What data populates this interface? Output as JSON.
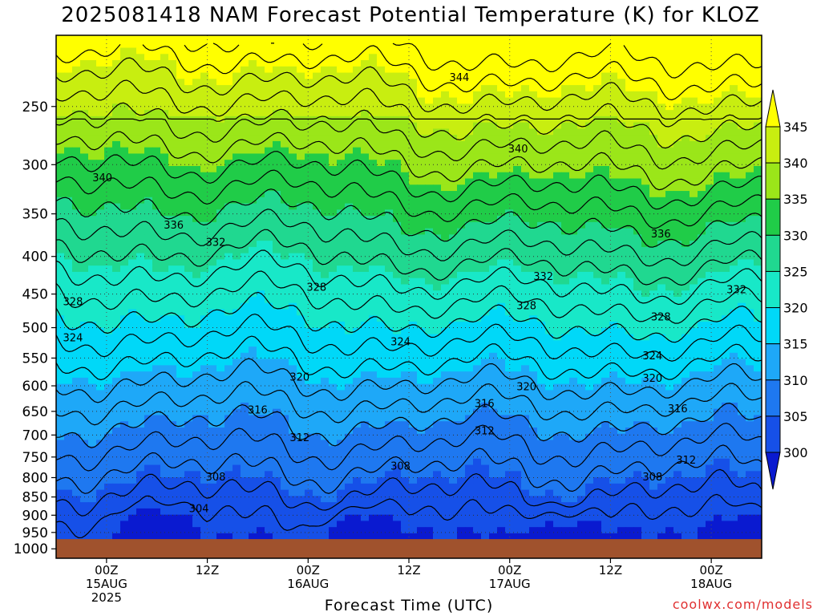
{
  "chart_data": {
    "type": "contour",
    "title": "2025081418 NAM Forecast Potential Temperature (K) for KLOZ",
    "xlabel": "Forecast Time (UTC)",
    "ylabel": "",
    "credit": "coolwx.com/models",
    "x_ticks": [
      {
        "hour": 6,
        "line1": "00Z",
        "line2": "15AUG",
        "line3": "2025"
      },
      {
        "hour": 18,
        "line1": "12Z",
        "line2": "",
        "line3": ""
      },
      {
        "hour": 30,
        "line1": "00Z",
        "line2": "16AUG",
        "line3": ""
      },
      {
        "hour": 42,
        "line1": "12Z",
        "line2": "",
        "line3": ""
      },
      {
        "hour": 54,
        "line1": "00Z",
        "line2": "17AUG",
        "line3": ""
      },
      {
        "hour": 66,
        "line1": "12Z",
        "line2": "",
        "line3": ""
      },
      {
        "hour": 78,
        "line1": "00Z",
        "line2": "18AUG",
        "line3": ""
      }
    ],
    "x_range_hours": [
      0,
      84
    ],
    "y_ticks": [
      "250",
      "300",
      "350",
      "400",
      "450",
      "500",
      "550",
      "600",
      "650",
      "700",
      "750",
      "800",
      "850",
      "900",
      "950",
      "1000"
    ],
    "y_range_hpa": [
      200,
      1030
    ],
    "y_scale": "log",
    "ground_pressure_hpa": 970,
    "colorbar_levels": [
      "300",
      "305",
      "310",
      "315",
      "320",
      "325",
      "330",
      "335",
      "340",
      "345"
    ],
    "colorbar_colors": [
      "#0a1ad0",
      "#1650e8",
      "#1e78f0",
      "#1ea8f8",
      "#00d8f8",
      "#18e8c8",
      "#20d890",
      "#20cc48",
      "#9be619",
      "#c8ee10",
      "#ffff00"
    ],
    "ground_color": "#a0522d",
    "contour_interval_k": 2,
    "contour_labels": [
      {
        "value": "344",
        "hour": 48,
        "p": 228
      },
      {
        "value": "340",
        "hour": 55,
        "p": 285
      },
      {
        "value": "340",
        "hour": 5.5,
        "p": 312
      },
      {
        "value": "336",
        "hour": 14,
        "p": 362
      },
      {
        "value": "336",
        "hour": 72,
        "p": 372
      },
      {
        "value": "332",
        "hour": 19,
        "p": 382
      },
      {
        "value": "332",
        "hour": 58,
        "p": 425
      },
      {
        "value": "332",
        "hour": 81,
        "p": 443
      },
      {
        "value": "328",
        "hour": 31,
        "p": 440
      },
      {
        "value": "328",
        "hour": 2,
        "p": 460
      },
      {
        "value": "328",
        "hour": 56,
        "p": 466
      },
      {
        "value": "328",
        "hour": 72,
        "p": 483
      },
      {
        "value": "324",
        "hour": 2,
        "p": 515
      },
      {
        "value": "324",
        "hour": 41,
        "p": 522
      },
      {
        "value": "324",
        "hour": 71,
        "p": 545
      },
      {
        "value": "320",
        "hour": 29,
        "p": 583
      },
      {
        "value": "320",
        "hour": 56,
        "p": 601
      },
      {
        "value": "320",
        "hour": 71,
        "p": 585
      },
      {
        "value": "316",
        "hour": 24,
        "p": 646
      },
      {
        "value": "316",
        "hour": 51,
        "p": 633
      },
      {
        "value": "316",
        "hour": 74,
        "p": 644
      },
      {
        "value": "312",
        "hour": 29,
        "p": 705
      },
      {
        "value": "312",
        "hour": 51,
        "p": 690
      },
      {
        "value": "312",
        "hour": 75,
        "p": 756
      },
      {
        "value": "308",
        "hour": 19,
        "p": 797
      },
      {
        "value": "308",
        "hour": 41,
        "p": 770
      },
      {
        "value": "308",
        "hour": 71,
        "p": 797
      },
      {
        "value": "304",
        "hour": 17,
        "p": 880
      }
    ]
  }
}
